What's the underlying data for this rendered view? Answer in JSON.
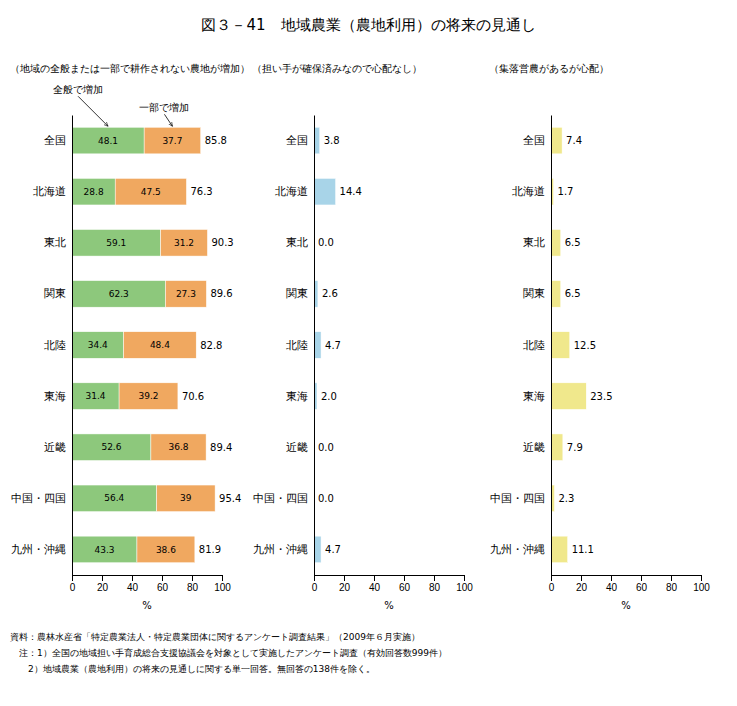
{
  "chart_data": [
    {
      "type": "bar",
      "orientation": "horizontal",
      "stacked": true,
      "data_labels": true,
      "grid": false,
      "title": "図３－41　地域農業（農地利用）の将来の見通し",
      "subtitle": "（地域の全般または一部で耕作されない農地が増加）",
      "annotations": [
        "全般で増加",
        "一部で増加"
      ],
      "categories": [
        "全国",
        "北海道",
        "東北",
        "関東",
        "北陸",
        "東海",
        "近畿",
        "中国・四国",
        "九州・沖縄"
      ],
      "series": [
        {
          "color": "#8DC87C",
          "values": [
            48.1,
            28.8,
            59.1,
            62.3,
            34.4,
            31.4,
            52.6,
            56.4,
            43.3
          ]
        },
        {
          "color": "#F0A860",
          "values": [
            37.7,
            47.5,
            31.2,
            27.3,
            48.4,
            39.2,
            36.8,
            39.0,
            38.6
          ]
        }
      ],
      "totals": [
        85.8,
        76.3,
        90.3,
        89.6,
        82.8,
        70.6,
        89.4,
        95.4,
        81.9
      ],
      "xlabel": "%",
      "xlim": [
        0,
        100
      ],
      "xticks": [
        0,
        20,
        40,
        60,
        80,
        100
      ],
      "footnotes": [
        "資料：農林水産省「特定農業法人・特定農業団体に関するアンケート調査結果」（2009年６月実施）",
        "　注：1）全国の地域担い手育成総合支援協議会を対象として実施したアンケート調査（有効回答数999件）",
        "　　2）地域農業（農地利用）の将来の見通しに関する単一回答。無回答の138件を除く。"
      ]
    },
    {
      "type": "bar",
      "orientation": "horizontal",
      "data_labels": true,
      "grid": false,
      "subtitle": "（担い手が確保済みなので心配なし）",
      "categories": [
        "全国",
        "北海道",
        "東北",
        "関東",
        "北陸",
        "東海",
        "近畿",
        "中国・四国",
        "九州・沖縄"
      ],
      "values": [
        3.8,
        14.4,
        0.0,
        2.6,
        4.7,
        2.0,
        0.0,
        0.0,
        4.7
      ],
      "value_labels": [
        "3.8",
        "14.4",
        "0.0",
        "2.6",
        "4.7",
        "2.0",
        "0.0",
        "0.0",
        "4.7"
      ],
      "color": "#A8D4E8",
      "xlabel": "%",
      "xlim": [
        0,
        100
      ],
      "xticks": [
        0,
        20,
        40,
        60,
        80,
        100
      ]
    },
    {
      "type": "bar",
      "orientation": "horizontal",
      "data_labels": true,
      "grid": false,
      "subtitle": "（集落営農があるが心配）",
      "categories": [
        "全国",
        "北海道",
        "東北",
        "関東",
        "北陸",
        "東海",
        "近畿",
        "中国・四国",
        "九州・沖縄"
      ],
      "values": [
        7.4,
        1.7,
        6.5,
        6.5,
        12.5,
        23.5,
        7.9,
        2.3,
        11.1
      ],
      "color": "#F0E88C",
      "xlabel": "%",
      "xlim": [
        0,
        100
      ],
      "xticks": [
        0,
        20,
        40,
        60,
        80,
        100
      ]
    }
  ]
}
